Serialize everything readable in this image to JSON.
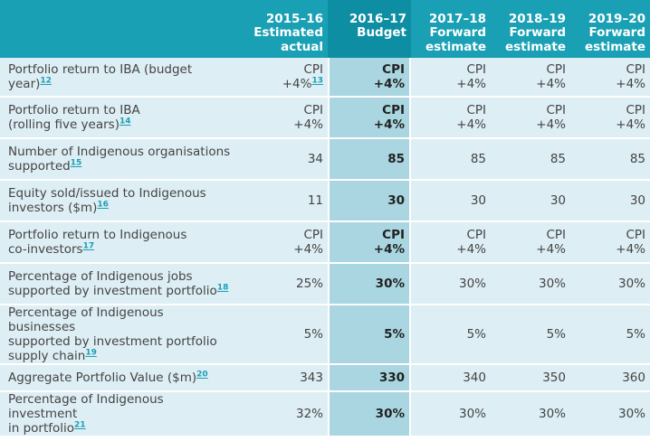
{
  "columns": [
    {
      "line1": "2015–16",
      "line2": "Estimated",
      "line3": "actual"
    },
    {
      "line1": "2016–17",
      "line2": "Budget",
      "line3": ""
    },
    {
      "line1": "2017–18",
      "line2": "Forward",
      "line3": "estimate"
    },
    {
      "line1": "2018–19",
      "line2": "Forward",
      "line3": "estimate"
    },
    {
      "line1": "2019–20",
      "line2": "Forward",
      "line3": "estimate"
    }
  ],
  "rows": [
    {
      "label1": "Portfolio return to IBA (budget year)",
      "label2": "",
      "label3": "",
      "fn": "12",
      "c0a": "CPI",
      "c0b": "+4%",
      "c0fn": "13",
      "c1a": "CPI",
      "c1b": "+4%",
      "c2a": "CPI",
      "c2b": "+4%",
      "c3a": "CPI",
      "c3b": "+4%",
      "c4a": "CPI",
      "c4b": "+4%"
    },
    {
      "label1": "Portfolio return to IBA",
      "label2": "(rolling five years)",
      "label3": "",
      "fn": "14",
      "c0a": "CPI",
      "c0b": "+4%",
      "c1a": "CPI",
      "c1b": "+4%",
      "c2a": "CPI",
      "c2b": "+4%",
      "c3a": "CPI",
      "c3b": "+4%",
      "c4a": "CPI",
      "c4b": "+4%"
    },
    {
      "label1": "Number of Indigenous organisations",
      "label2": "supported",
      "label3": "",
      "fn": "15",
      "c0a": "34",
      "c1a": "85",
      "c2a": "85",
      "c3a": "85",
      "c4a": "85"
    },
    {
      "label1": "Equity sold/issued to Indigenous",
      "label2": "investors ($m)",
      "label3": "",
      "fn": "16",
      "c0a": "11",
      "c1a": "30",
      "c2a": "30",
      "c3a": "30",
      "c4a": "30"
    },
    {
      "label1": "Portfolio return to Indigenous",
      "label2": "co-investors",
      "label3": "",
      "fn": "17",
      "c0a": "CPI",
      "c0b": "+4%",
      "c1a": "CPI",
      "c1b": "+4%",
      "c2a": "CPI",
      "c2b": "+4%",
      "c3a": "CPI",
      "c3b": "+4%",
      "c4a": "CPI",
      "c4b": "+4%"
    },
    {
      "label1": "Percentage of Indigenous jobs",
      "label2": "supported by investment portfolio",
      "label3": "",
      "fn": "18",
      "c0a": "25%",
      "c1a": "30%",
      "c2a": "30%",
      "c3a": "30%",
      "c4a": "30%"
    },
    {
      "label1": "Percentage of Indigenous businesses",
      "label2": "supported by investment portfolio",
      "label3": "supply chain",
      "fn": "19",
      "c0a": "5%",
      "c1a": "5%",
      "c2a": "5%",
      "c3a": "5%",
      "c4a": "5%"
    },
    {
      "label1": "Aggregate Portfolio Value ($m)",
      "label2": "",
      "label3": "",
      "fn": "20",
      "c0a": "343",
      "c1a": "330",
      "c2a": "340",
      "c3a": "350",
      "c4a": "360"
    },
    {
      "label1": "Percentage of Indigenous investment",
      "label2": "in portfolio",
      "label3": "",
      "fn": "21",
      "c0a": "32%",
      "c1a": "30%",
      "c2a": "30%",
      "c3a": "30%",
      "c4a": "30%"
    }
  ]
}
